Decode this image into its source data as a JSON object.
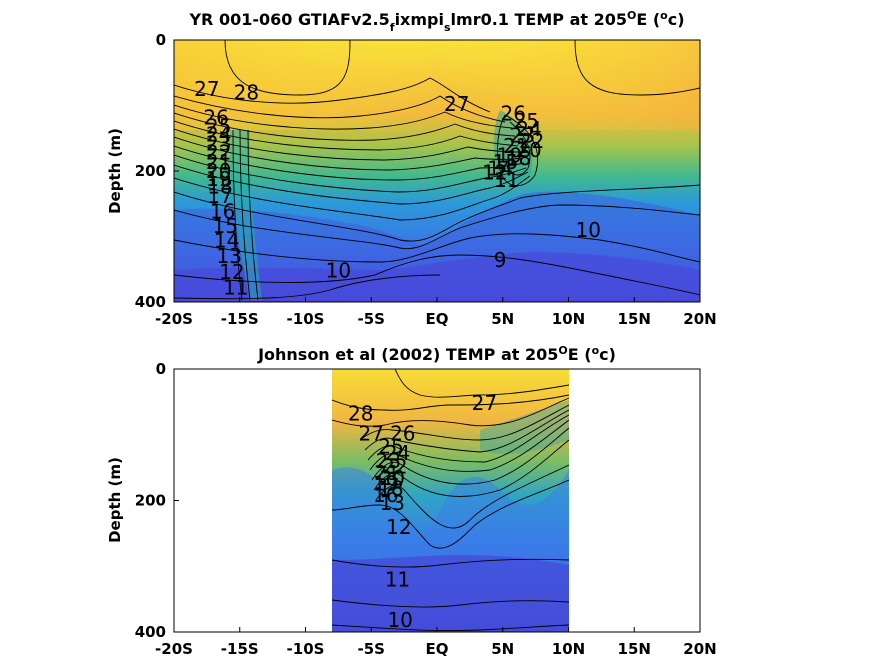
{
  "chart_data": [
    {
      "type": "heatmap",
      "title": "YR 001-060 GTIAFv2.5_f ixmpi_s lmr0.1 TEMP at 205°E (°c)",
      "title_parts": {
        "main": "YR 001-060 GTIAFv2.5",
        "sub_f": "f",
        "mid": "ixmpi",
        "sub_s": "s",
        "tail": "lmr0.1 TEMP at 205",
        "sup_o": "O",
        "unit_pre": "E (",
        "unit_sup": "o",
        "unit_post": "c)"
      },
      "ylabel": "Depth (m)",
      "xlim": [
        -20,
        20
      ],
      "ylim": [
        400,
        0
      ],
      "x_ticks": [
        "-20S",
        "-15S",
        "-10S",
        "-5S",
        "EQ",
        "5N",
        "10N",
        "15N",
        "20N"
      ],
      "y_ticks": [
        "0",
        "200",
        "400"
      ],
      "data_extent_lat": [
        -20,
        20
      ],
      "contour_labels": [
        {
          "text": "27",
          "lat": -17.5,
          "depth": 75
        },
        {
          "text": "28",
          "lat": -14.5,
          "depth": 80
        },
        {
          "text": "26",
          "lat": -16.8,
          "depth": 118
        },
        {
          "text": "25",
          "lat": -16.6,
          "depth": 132
        },
        {
          "text": "24",
          "lat": -16.6,
          "depth": 144
        },
        {
          "text": "23",
          "lat": -16.6,
          "depth": 158
        },
        {
          "text": "22",
          "lat": -16.6,
          "depth": 172
        },
        {
          "text": "21",
          "lat": -16.6,
          "depth": 186
        },
        {
          "text": "20",
          "lat": -16.6,
          "depth": 200
        },
        {
          "text": "19",
          "lat": -16.6,
          "depth": 212
        },
        {
          "text": "18",
          "lat": -16.5,
          "depth": 224
        },
        {
          "text": "17",
          "lat": -16.5,
          "depth": 238
        },
        {
          "text": "16",
          "lat": -16.3,
          "depth": 262
        },
        {
          "text": "15",
          "lat": -16.1,
          "depth": 284
        },
        {
          "text": "14",
          "lat": -16.0,
          "depth": 306
        },
        {
          "text": "13",
          "lat": -15.8,
          "depth": 330
        },
        {
          "text": "12",
          "lat": -15.6,
          "depth": 354
        },
        {
          "text": "11",
          "lat": -15.3,
          "depth": 378
        },
        {
          "text": "10",
          "lat": -7.5,
          "depth": 352
        },
        {
          "text": "27",
          "lat": 1.5,
          "depth": 98
        },
        {
          "text": "26",
          "lat": 5.8,
          "depth": 112
        },
        {
          "text": "25",
          "lat": 6.8,
          "depth": 124
        },
        {
          "text": "24",
          "lat": 7.0,
          "depth": 136
        },
        {
          "text": "23",
          "lat": 6.5,
          "depth": 146
        },
        {
          "text": "22",
          "lat": 7.2,
          "depth": 154
        },
        {
          "text": "21",
          "lat": 6.0,
          "depth": 162
        },
        {
          "text": "20",
          "lat": 7.0,
          "depth": 168
        },
        {
          "text": "19",
          "lat": 5.5,
          "depth": 176
        },
        {
          "text": "18",
          "lat": 6.2,
          "depth": 180
        },
        {
          "text": "15",
          "lat": 5.2,
          "depth": 186
        },
        {
          "text": "14",
          "lat": 4.8,
          "depth": 196
        },
        {
          "text": "12",
          "lat": 4.4,
          "depth": 202
        },
        {
          "text": "11",
          "lat": 5.3,
          "depth": 214
        },
        {
          "text": "10",
          "lat": 11.5,
          "depth": 290
        },
        {
          "text": "9",
          "lat": 4.8,
          "depth": 336
        }
      ]
    },
    {
      "type": "heatmap",
      "title": "Johnson et al (2002) TEMP at 205°E (°c)",
      "title_parts": {
        "main": "Johnson et al (2002) TEMP at 205",
        "sup_o": "O",
        "unit_pre": "E (",
        "unit_sup": "o",
        "unit_post": "c)"
      },
      "ylabel": "Depth (m)",
      "xlim": [
        -20,
        20
      ],
      "ylim": [
        400,
        0
      ],
      "x_ticks": [
        "-20S",
        "-15S",
        "-10S",
        "-5S",
        "EQ",
        "5N",
        "10N",
        "15N",
        "20N"
      ],
      "y_ticks": [
        "0",
        "200",
        "400"
      ],
      "data_extent_lat": [
        -8,
        10
      ],
      "contour_labels": [
        {
          "text": "28",
          "lat": -5.8,
          "depth": 68
        },
        {
          "text": "27",
          "lat": -5.0,
          "depth": 98
        },
        {
          "text": "27",
          "lat": 3.6,
          "depth": 52
        },
        {
          "text": "26",
          "lat": -2.6,
          "depth": 98
        },
        {
          "text": "25",
          "lat": -3.5,
          "depth": 118
        },
        {
          "text": "24",
          "lat": -3.0,
          "depth": 128
        },
        {
          "text": "23",
          "lat": -3.7,
          "depth": 140
        },
        {
          "text": "22",
          "lat": -3.2,
          "depth": 148
        },
        {
          "text": "21",
          "lat": -3.8,
          "depth": 158
        },
        {
          "text": "20",
          "lat": -3.4,
          "depth": 166
        },
        {
          "text": "19",
          "lat": -3.9,
          "depth": 174
        },
        {
          "text": "18",
          "lat": -3.5,
          "depth": 182
        },
        {
          "text": "16",
          "lat": -3.9,
          "depth": 192
        },
        {
          "text": "13",
          "lat": -3.4,
          "depth": 204
        },
        {
          "text": "12",
          "lat": -2.9,
          "depth": 240
        },
        {
          "text": "11",
          "lat": -3.0,
          "depth": 320
        },
        {
          "text": "10",
          "lat": -2.8,
          "depth": 382
        }
      ]
    }
  ]
}
